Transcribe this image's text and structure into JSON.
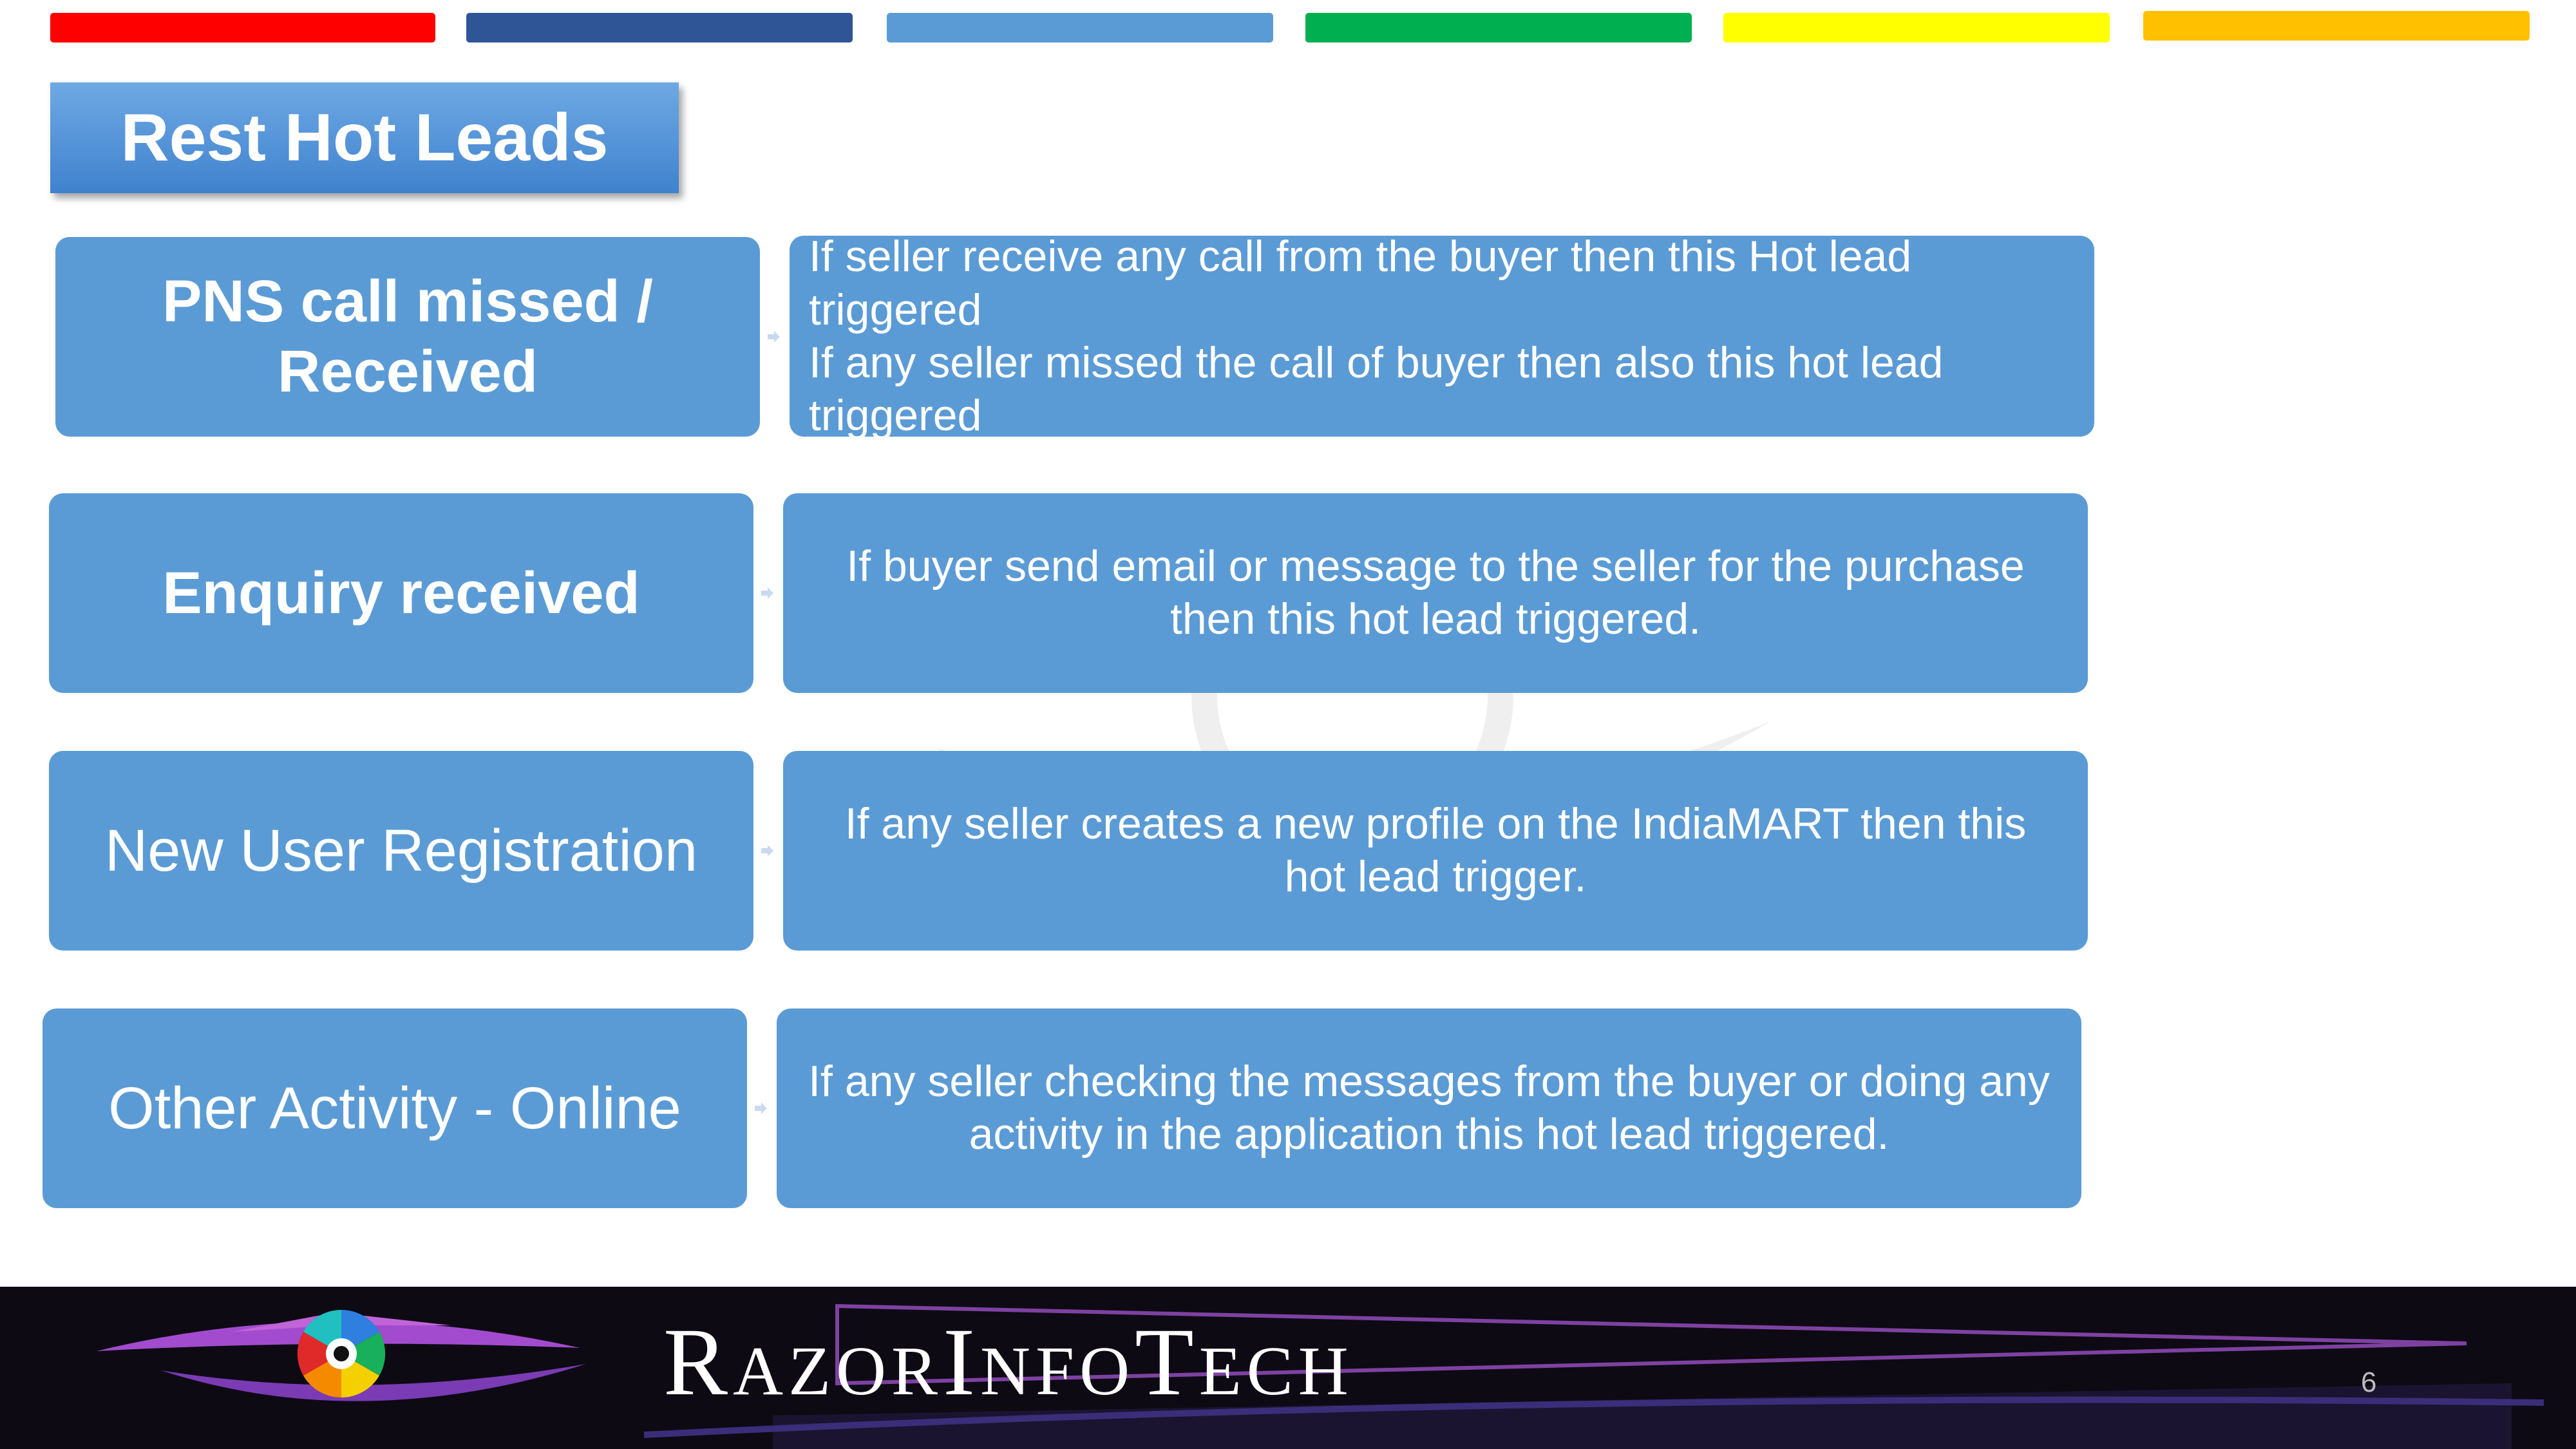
{
  "header": {
    "colors": [
      "#ff0000",
      "#2f5597",
      "#5b9bd5",
      "#00b050",
      "#ffff00",
      "#ffc000"
    ]
  },
  "title": "Rest Hot Leads",
  "rows": [
    {
      "label": "PNS call missed / Received",
      "description_lines": [
        "If seller receive any call from the buyer then this Hot lead",
        "triggered",
        "If any seller missed the call of buyer then also this hot lead",
        "triggered"
      ]
    },
    {
      "label": "Enquiry received",
      "description": "If buyer send email or message to the seller for the purchase then this hot lead triggered."
    },
    {
      "label": "New User Registration",
      "description": "If any seller creates a new profile on the IndiaMART then this hot lead trigger."
    },
    {
      "label": "Other Activity - Online",
      "description": "If any seller checking the messages from the buyer or doing any activity in the application this hot lead triggered."
    }
  ],
  "footer": {
    "brand": "RazorInfoTech",
    "logo": "razorinfotech-eye-logo",
    "page_number": "6"
  },
  "colors": {
    "box_fill": "#5b9bd5",
    "footer_bg": "#0d0a14",
    "accent_purple": "#9b4fc4"
  }
}
